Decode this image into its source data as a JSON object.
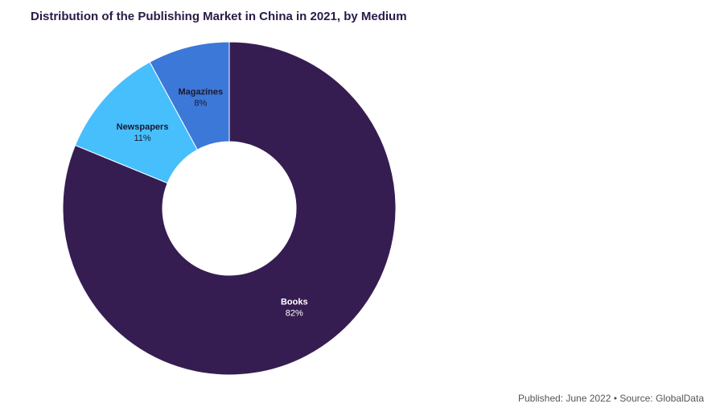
{
  "chart_data": {
    "type": "pie",
    "variant": "donut",
    "title": "Distribution of the Publishing Market in China in 2021, by Medium",
    "categories": [
      "Books",
      "Newspapers",
      "Magazines"
    ],
    "values": [
      82,
      11,
      8
    ],
    "value_labels": [
      "82%",
      "11%",
      "8%"
    ],
    "unit": "%",
    "colors": [
      "#351d52",
      "#47bffd",
      "#3c78d8"
    ],
    "label_colors": [
      "#ffffff",
      "#1a1a2e",
      "#1a1a2e"
    ],
    "legend": "none"
  },
  "footer": {
    "text": "Published: June 2022 • Source: GlobalData"
  }
}
